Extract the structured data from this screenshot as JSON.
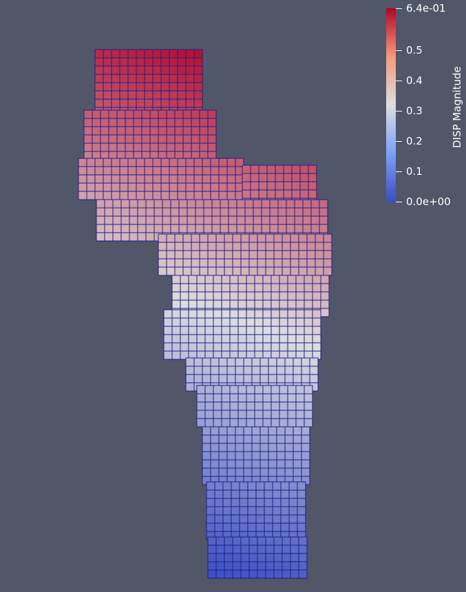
{
  "colorbar": {
    "title": "DISP Magnitude",
    "min_label": "0.0e+00",
    "max_label": "6.4e-01",
    "min": 0.0,
    "max": 0.64,
    "ticks": [
      {
        "value": 0.64,
        "label": "6.4e-01"
      },
      {
        "value": 0.5,
        "label": "0.5"
      },
      {
        "value": 0.4,
        "label": "0.4"
      },
      {
        "value": 0.3,
        "label": "0.3"
      },
      {
        "value": 0.2,
        "label": "0.2"
      },
      {
        "value": 0.1,
        "label": "0.1"
      },
      {
        "value": 0.0,
        "label": "0.0e+00"
      }
    ],
    "colormap": {
      "low": "#3b4cc0",
      "mid": "#dddddd",
      "high": "#b40426"
    }
  },
  "scene": {
    "background": "#525669",
    "edge_color": "#1a1f8c"
  }
}
